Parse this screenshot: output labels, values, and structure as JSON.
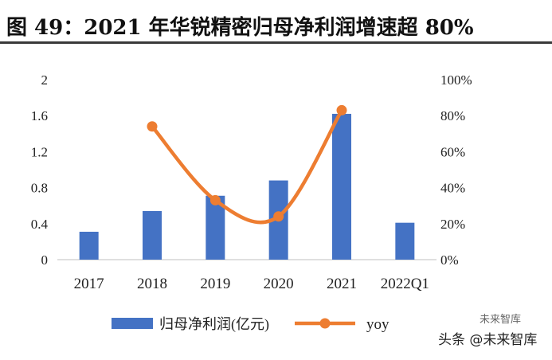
{
  "title": "图 49：2021 年华锐精密归母净利润增速超 80%",
  "watermark": {
    "main": "头条 @未来智库",
    "badge": "未来智库"
  },
  "colors": {
    "bar": "#4472c4",
    "line": "#ed7d31",
    "axis": "#bfbfbf"
  },
  "chart_data": {
    "type": "bar",
    "categories": [
      "2017",
      "2018",
      "2019",
      "2020",
      "2021",
      "2022Q1"
    ],
    "series": [
      {
        "name": "归母净利润(亿元)",
        "type": "bar",
        "axis": "left",
        "values": [
          0.31,
          0.54,
          0.71,
          0.88,
          1.62,
          0.41
        ]
      },
      {
        "name": "yoy",
        "type": "line",
        "axis": "right",
        "values": [
          null,
          0.74,
          0.33,
          0.24,
          0.83,
          null
        ]
      }
    ],
    "y_left": {
      "min": 0,
      "max": 2,
      "ticks": [
        "0",
        "0.4",
        "0.8",
        "1.2",
        "1.6",
        "2"
      ],
      "tick_values": [
        0,
        0.4,
        0.8,
        1.2,
        1.6,
        2
      ]
    },
    "y_right": {
      "min": 0,
      "max": 1,
      "ticks": [
        "0%",
        "20%",
        "40%",
        "60%",
        "80%",
        "100%"
      ],
      "tick_values": [
        0,
        0.2,
        0.4,
        0.6,
        0.8,
        1
      ]
    },
    "legend": {
      "position": "bottom",
      "items": [
        "归母净利润(亿元)",
        "yoy"
      ]
    },
    "grid": false
  }
}
